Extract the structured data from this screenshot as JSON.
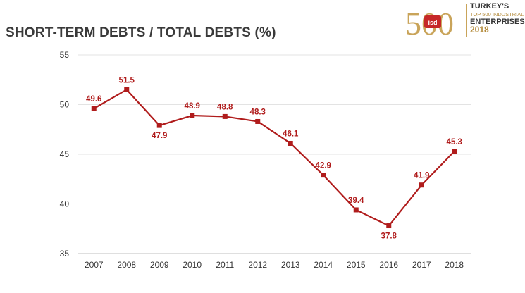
{
  "header": {
    "title": "SHORT-TERM DEBTS / TOTAL DEBTS (%)"
  },
  "logo": {
    "number": "500",
    "badge": "isd",
    "line1": "TURKEY'S",
    "line2": "TOP 500 INDUSTRIAL",
    "line3": "ENTERPRISES",
    "line4": "2018",
    "colors": {
      "gold": "#c9a45a",
      "red": "#c62828"
    }
  },
  "chart_data": {
    "type": "line",
    "title": "SHORT-TERM DEBTS / TOTAL DEBTS (%)",
    "xlabel": "",
    "ylabel": "",
    "categories": [
      "2007",
      "2008",
      "2009",
      "2010",
      "2011",
      "2012",
      "2013",
      "2014",
      "2015",
      "2016",
      "2017",
      "2018"
    ],
    "series": [
      {
        "values": [
          49.6,
          51.5,
          47.9,
          48.9,
          48.8,
          48.3,
          46.1,
          42.9,
          39.4,
          37.8,
          41.9,
          45.3
        ]
      }
    ],
    "data_labels": [
      "49.6",
      "51.5",
      "47.9",
      "48.9",
      "48.8",
      "48.3",
      "46.1",
      "42.9",
      "39.4",
      "37.8",
      "41.9",
      "45.3"
    ],
    "ylim": [
      35,
      55
    ],
    "yticks": [
      35,
      40,
      45,
      50,
      55
    ],
    "grid": true,
    "legend": "none",
    "colors": {
      "line": "#b01c1c",
      "grid": "#e3e3e3"
    }
  }
}
